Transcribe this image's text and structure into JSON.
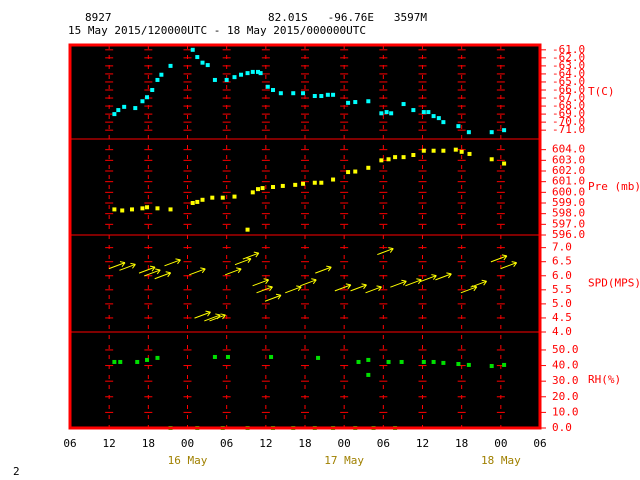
{
  "chart_data": {
    "type": "scatter",
    "station": "8927",
    "location": "82.01S   -96.76E   3597M",
    "period": "15 May 2015/120000UTC - 18 May 2015/000000UTC",
    "page_number": "2",
    "frame_color": "#ff0000",
    "xlim": [
      6,
      78
    ],
    "xticks": [
      {
        "value": 6,
        "label": "06"
      },
      12,
      18,
      {
        "value": 24,
        "label": "00"
      },
      {
        "value": 30,
        "label": "06"
      },
      {
        "value": 36,
        "label": "12"
      },
      {
        "value": 42,
        "label": "18"
      },
      {
        "value": 48,
        "label": "00"
      },
      {
        "value": 54,
        "label": "06"
      },
      {
        "value": 60,
        "label": "12"
      },
      {
        "value": 66,
        "label": "18"
      },
      {
        "value": 72,
        "label": "00"
      },
      {
        "value": 78,
        "label": "06"
      }
    ],
    "date_labels": [
      {
        "value": 24,
        "label": "16 May"
      },
      {
        "value": 48,
        "label": "17 May"
      },
      {
        "value": 72,
        "label": "18 May"
      }
    ],
    "panels": [
      {
        "label": "T(C)",
        "color": "#00ffff",
        "marker": "square",
        "ylim": [
          -72.1,
          -60.4
        ],
        "yticks": [
          {
            "value": -61,
            "label": "-61.0"
          },
          {
            "value": -62,
            "label": "-62.0"
          },
          {
            "value": -63,
            "label": "-63.0"
          },
          {
            "value": -64,
            "label": "-64.0"
          },
          {
            "value": -65,
            "label": "-65.0"
          },
          {
            "value": -66,
            "label": "-66.0"
          },
          {
            "value": -67,
            "label": "-67.0"
          },
          {
            "value": -68,
            "label": "-68.0"
          },
          {
            "value": -69,
            "label": "-69.0"
          },
          {
            "value": -70,
            "label": "-70.0"
          },
          {
            "value": -71,
            "label": "-71.0"
          }
        ],
        "x": [
          12.8,
          13.4,
          14.3,
          16.0,
          17.1,
          17.8,
          18.6,
          19.4,
          20.0,
          21.4,
          24.8,
          25.5,
          26.3,
          27.1,
          28.2,
          30.0,
          31.2,
          32.2,
          33.2,
          34.0,
          34.8,
          35.2,
          36.3,
          37.1,
          38.3,
          40.2,
          41.7,
          43.5,
          44.5,
          45.5,
          46.3,
          48.6,
          49.7,
          51.7,
          53.7,
          54.5,
          55.2,
          57.1,
          58.6,
          60.2,
          60.9,
          61.7,
          62.5,
          63.2,
          65.5,
          67.1,
          70.6,
          72.5
        ],
        "values": [
          -69.0,
          -68.5,
          -68.1,
          -68.25,
          -67.4,
          -66.9,
          -66.0,
          -64.75,
          -64.1,
          -63.0,
          -61.0,
          -61.9,
          -62.6,
          -62.9,
          -64.75,
          -64.75,
          -64.4,
          -64.1,
          -63.9,
          -63.75,
          -63.75,
          -63.9,
          -65.6,
          -66.0,
          -66.4,
          -66.4,
          -66.4,
          -66.75,
          -66.75,
          -66.6,
          -66.6,
          -67.6,
          -67.5,
          -67.4,
          -68.9,
          -68.75,
          -68.9,
          -67.75,
          -68.5,
          -68.75,
          -68.75,
          -69.25,
          -69.5,
          -70.0,
          -70.5,
          -71.25,
          -71.25,
          -71.0
        ]
      },
      {
        "label": "Pre (mb)",
        "color": "#ffff00",
        "marker": "square",
        "ylim": [
          596,
          605
        ],
        "yticks": [
          {
            "value": 596,
            "label": "596.0"
          },
          {
            "value": 597,
            "label": "597.0"
          },
          {
            "value": 598,
            "label": "598.0"
          },
          {
            "value": 599,
            "label": "599.0"
          },
          {
            "value": 600,
            "label": "600.0"
          },
          {
            "value": 601,
            "label": "601.0"
          },
          {
            "value": 602,
            "label": "602.0"
          },
          {
            "value": 603,
            "label": "603.0"
          },
          {
            "value": 604,
            "label": "604.0"
          }
        ],
        "x": [
          12.8,
          14.0,
          15.5,
          17.1,
          17.8,
          19.4,
          21.4,
          24.8,
          25.5,
          26.3,
          27.8,
          29.4,
          31.2,
          33.2,
          34.0,
          34.8,
          35.5,
          37.1,
          38.6,
          40.5,
          41.7,
          43.5,
          44.5,
          46.3,
          48.6,
          49.7,
          51.7,
          53.7,
          54.8,
          55.8,
          57.1,
          58.6,
          60.2,
          61.7,
          63.2,
          65.1,
          66.0,
          67.2,
          70.6,
          72.5
        ],
        "values": [
          598.4,
          598.3,
          598.4,
          598.5,
          598.6,
          598.5,
          598.4,
          599.0,
          599.1,
          599.3,
          599.5,
          599.5,
          599.6,
          596.5,
          600.0,
          600.3,
          600.4,
          600.5,
          600.6,
          600.7,
          600.8,
          600.9,
          600.9,
          601.2,
          601.9,
          601.95,
          602.3,
          603.0,
          603.1,
          603.3,
          603.3,
          603.5,
          603.9,
          603.9,
          603.9,
          604.0,
          603.8,
          603.6,
          603.1,
          602.7
        ]
      },
      {
        "label": "SPD(MPS)",
        "color": "#ffff00",
        "marker": "arrow",
        "ylim": [
          4,
          7.45
        ],
        "yticks": [
          {
            "value": 4,
            "label": "4.0"
          },
          4.5,
          {
            "value": 5,
            "label": "5.0"
          },
          5.5,
          {
            "value": 6,
            "label": "6.0"
          },
          6.5,
          {
            "value": 7,
            "label": "7.0"
          }
        ],
        "x": [
          13.2,
          14.8,
          17.8,
          18.6,
          20.2,
          21.7,
          25.5,
          26.3,
          27.8,
          28.6,
          31.0,
          32.5,
          33.7,
          35.2,
          35.8,
          37.1,
          40.2,
          42.5,
          44.8,
          47.8,
          50.2,
          52.5,
          54.3,
          56.3,
          58.6,
          60.9,
          63.2,
          67.1,
          68.6,
          71.7,
          73.2
        ],
        "values": [
          6.36,
          6.3,
          6.2,
          6.1,
          6.0,
          6.46,
          6.14,
          4.6,
          4.5,
          4.5,
          6.14,
          6.5,
          6.7,
          5.75,
          5.5,
          5.2,
          5.5,
          5.75,
          6.2,
          5.57,
          5.57,
          5.5,
          6.86,
          5.7,
          5.75,
          5.9,
          5.96,
          5.5,
          5.7,
          6.6,
          6.36
        ]
      },
      {
        "label": "RH(%)",
        "color": "#00e000",
        "marker": "square",
        "ylim": [
          0,
          61.5
        ],
        "yticks": [
          {
            "value": 0,
            "label": "0.0"
          },
          {
            "value": 10,
            "label": "10.0"
          },
          {
            "value": 20,
            "label": "20.0"
          },
          {
            "value": 30,
            "label": "30.0"
          },
          {
            "value": 40,
            "label": "40.0"
          },
          {
            "value": 50,
            "label": "50.0"
          }
        ],
        "x": [
          12.8,
          13.7,
          16.3,
          17.8,
          19.4,
          28.2,
          30.2,
          36.8,
          44.0,
          50.2,
          51.7,
          51.7,
          54.8,
          56.8,
          60.2,
          61.7,
          63.2,
          65.5,
          67.1,
          70.6,
          72.5,
          21.4,
          25.5,
          29.4,
          33.2,
          37.1,
          40.2,
          43.5,
          46.3,
          49.7,
          52.5,
          55.8
        ],
        "values": [
          42.3,
          42.3,
          42.3,
          43.6,
          44.9,
          45.5,
          45.5,
          45.5,
          44.9,
          42.3,
          43.6,
          34.0,
          42.3,
          42.3,
          42.3,
          42.3,
          41.7,
          41.0,
          40.4,
          39.7,
          40.4,
          0,
          0,
          0,
          0,
          0,
          0,
          0,
          0,
          0,
          0,
          0
        ]
      }
    ]
  }
}
